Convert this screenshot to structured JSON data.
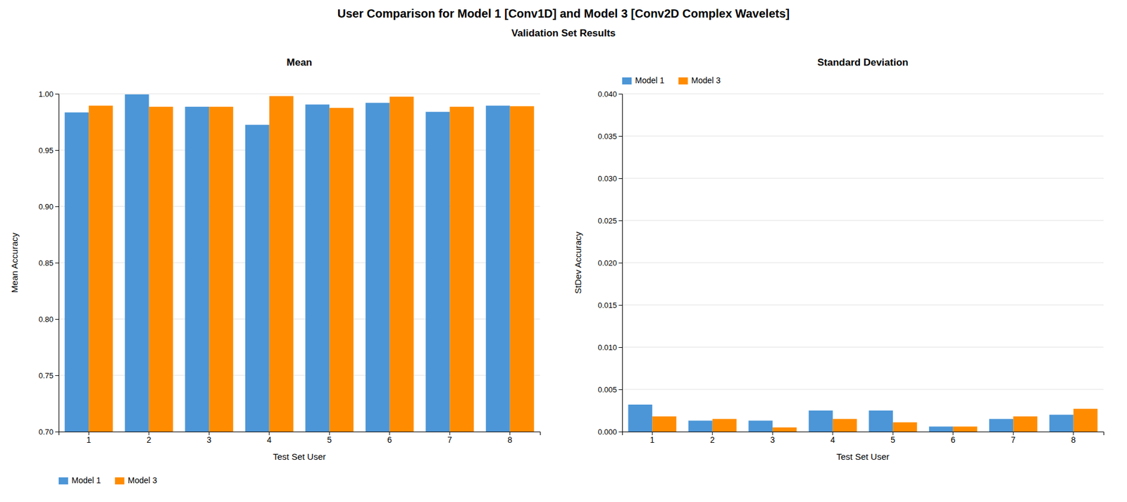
{
  "title": "User Comparison for Model 1 [Conv1D] and Model 3 [Conv2D Complex Wavelets]",
  "subtitle": "Validation Set Results",
  "chart_data": [
    {
      "type": "bar",
      "title": "Mean",
      "xlabel": "Test Set User",
      "ylabel": "Mean Accuracy",
      "categories": [
        1,
        2,
        3,
        4,
        5,
        6,
        7,
        8
      ],
      "series": [
        {
          "name": "Model 1",
          "color": "#4C96D7",
          "values": [
            0.9835,
            0.9995,
            0.9885,
            0.9725,
            0.9905,
            0.992,
            0.984,
            0.9895
          ]
        },
        {
          "name": "Model 3",
          "color": "#FF8C00",
          "values": [
            0.9895,
            0.9885,
            0.9885,
            0.998,
            0.9875,
            0.9975,
            0.9885,
            0.989
          ]
        }
      ],
      "ylim": [
        0.7,
        1.0
      ],
      "yticks": [
        {
          "value": 0.7,
          "label": "0.70"
        },
        {
          "value": 0.75,
          "label": "0.75"
        },
        {
          "value": 0.8,
          "label": "0.80"
        },
        {
          "value": 0.85,
          "label": "0.85"
        },
        {
          "value": 0.9,
          "label": "0.90"
        },
        {
          "value": 0.95,
          "label": "0.95"
        },
        {
          "value": 1.0,
          "label": "1.00"
        }
      ],
      "grid": true,
      "legend": "lower left"
    },
    {
      "type": "bar",
      "title": "Standard Deviation",
      "xlabel": "Test Set User",
      "ylabel": "StDev Accuracy",
      "categories": [
        1,
        2,
        3,
        4,
        5,
        6,
        7,
        8
      ],
      "series": [
        {
          "name": "Model 1",
          "color": "#4C96D7",
          "values": [
            0.0032,
            0.0013,
            0.0013,
            0.0025,
            0.0025,
            0.0006,
            0.0015,
            0.002
          ]
        },
        {
          "name": "Model 3",
          "color": "#FF8C00",
          "values": [
            0.0018,
            0.0015,
            0.0005,
            0.0015,
            0.0011,
            0.0006,
            0.0018,
            0.0027
          ]
        }
      ],
      "ylim": [
        0.0,
        0.04
      ],
      "yticks": [
        {
          "value": 0.0,
          "label": "0.000"
        },
        {
          "value": 0.005,
          "label": "0.005"
        },
        {
          "value": 0.01,
          "label": "0.010"
        },
        {
          "value": 0.015,
          "label": "0.015"
        },
        {
          "value": 0.02,
          "label": "0.020"
        },
        {
          "value": 0.025,
          "label": "0.025"
        },
        {
          "value": 0.03,
          "label": "0.030"
        },
        {
          "value": 0.035,
          "label": "0.035"
        },
        {
          "value": 0.04,
          "label": "0.040"
        }
      ],
      "grid": true,
      "legend": "upper left"
    }
  ]
}
